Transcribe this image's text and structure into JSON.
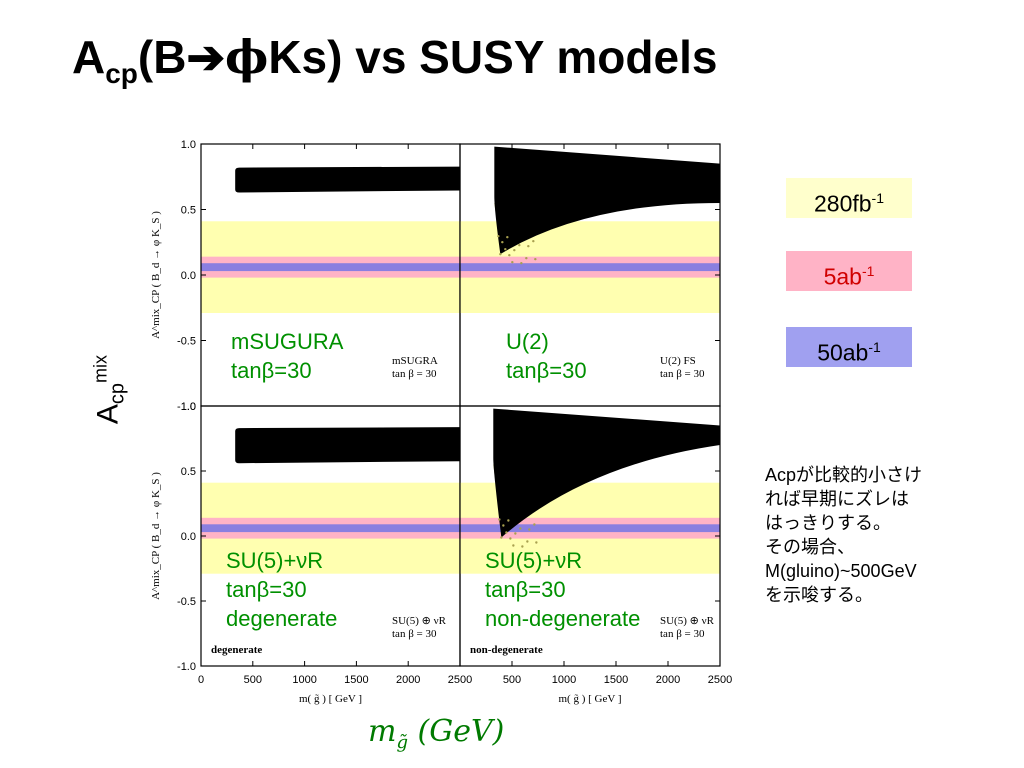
{
  "title": {
    "main": "A",
    "sub": "cp",
    "rest1": "(B",
    "arrow": "➔",
    "phi": "ϕ",
    "rest2": "Ks) vs SUSY models"
  },
  "y_axis_label": {
    "main": "A",
    "sub": "cp",
    "sup": "mix"
  },
  "inner_ylabel": "A^mix_CP ( B_d → φ K_S )",
  "inner_xlabel": "m( g̃ )  [ GeV ]",
  "x_axis_label": {
    "main": "m",
    "sub": "g̃",
    "rest": " (GeV)"
  },
  "legend": [
    {
      "label": "280fb",
      "sup": "-1",
      "color": "#ffffcc"
    },
    {
      "label": "5ab",
      "sup": "-1",
      "color": "#ffb3c6"
    },
    {
      "label": "50ab",
      "sup": "-1",
      "color": "#a0a0f0"
    }
  ],
  "note": [
    "Acpが比較的小さけ",
    "れば早期にズレは",
    "はっきりする。",
    "その場合、",
    "M(gluino)~500GeV",
    "を示唆する。"
  ],
  "colors": {
    "accent_green": "#009000",
    "band_yellow": "#ffffb0",
    "band_pink": "#ffb3c6",
    "band_blue": "#8a7fe0",
    "scatter_olive": "#a8a050"
  },
  "chart_data": {
    "type": "scatter",
    "xlim": [
      0,
      2500
    ],
    "ylim": [
      -1.0,
      1.0
    ],
    "x_ticks": [
      "0",
      "500",
      "1000",
      "1500",
      "2000",
      "2500"
    ],
    "y_ticks": [
      "1.0",
      "0.5",
      "0.0",
      "-0.5",
      "-1.0"
    ],
    "bands": [
      {
        "name": "280fb-1",
        "y_min": -0.29,
        "y_max": 0.41
      },
      {
        "name": "5ab-1",
        "y_min": -0.02,
        "y_max": 0.14
      },
      {
        "name": "50ab-1",
        "y_min": 0.03,
        "y_max": 0.09
      }
    ],
    "panels": [
      {
        "overlay": [
          "mSUGURA",
          "tanβ=30"
        ],
        "labels": [
          "mSUGRA",
          "tan β = 30"
        ],
        "kind": "flat",
        "x_start": 330,
        "y_min": 0.63,
        "y_max": 0.82
      },
      {
        "overlay": [
          "U(2)",
          "tanβ=30"
        ],
        "labels": [
          "U(2) FS",
          "tan β = 30"
        ],
        "kind": "funnel",
        "x_start": 330,
        "x_tip": 330,
        "y_tip": 0.22,
        "y_upper": 0.98,
        "y_lower_end": 0.55,
        "y_upper_end": 0.85
      },
      {
        "overlay": [
          "SU(5)+νR",
          "tanβ=30",
          "degenerate"
        ],
        "labels": [
          "SU(5) ⊕ νR",
          "tan β = 30",
          "degenerate"
        ],
        "kind": "flat",
        "x_start": 330,
        "y_min": 0.56,
        "y_max": 0.83
      },
      {
        "overlay": [
          "SU(5)+νR",
          "tanβ=30",
          "non-degenerate"
        ],
        "labels": [
          "SU(5) ⊕ νR",
          "tan β = 30",
          "non-degenerate"
        ],
        "kind": "funnel",
        "x_start": 320,
        "x_tip": 340,
        "y_tip": 0.05,
        "y_upper": 0.98,
        "y_lower_end": 0.7,
        "y_upper_end": 0.85
      }
    ]
  }
}
